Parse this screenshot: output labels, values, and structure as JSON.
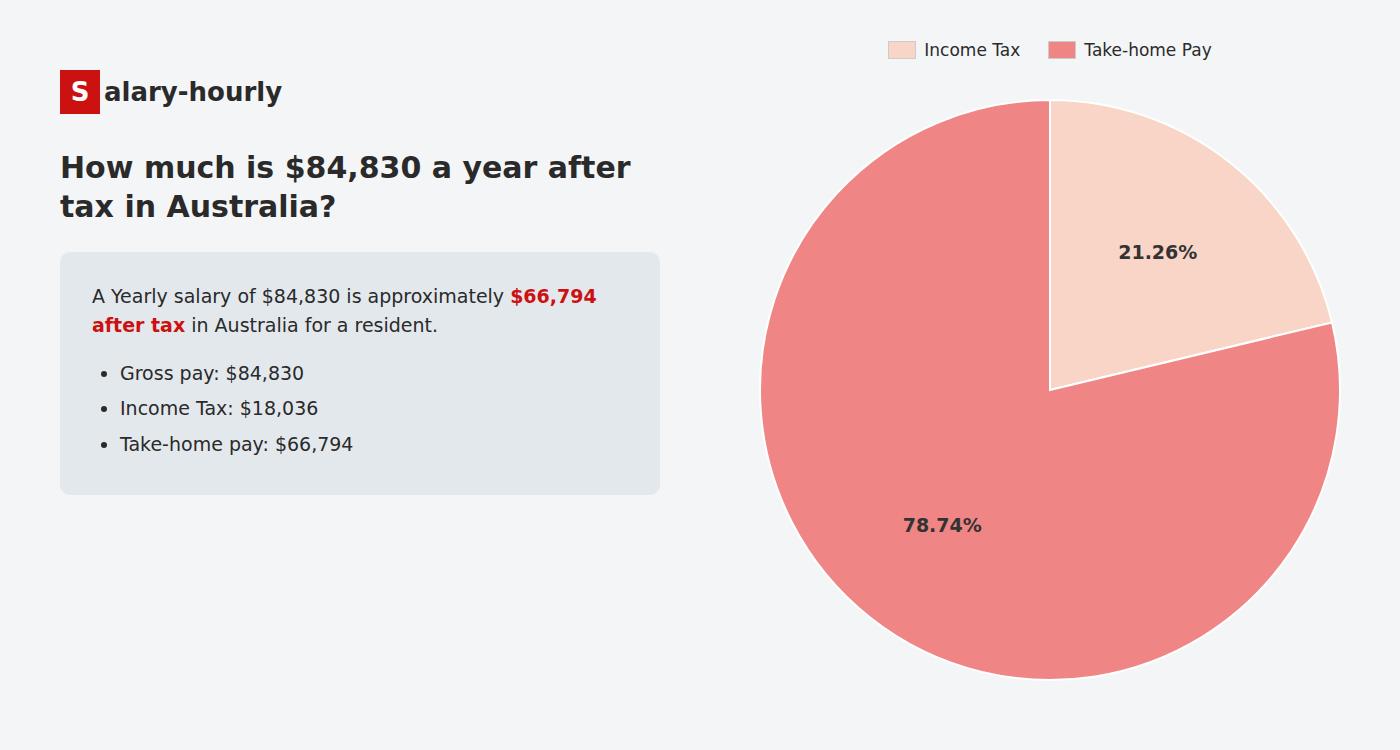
{
  "chart_data": {
    "type": "pie",
    "logo": {
      "texts": [
        "S",
        "alary-hourly"
      ],
      "color": "#cc1111"
    },
    "title": "How much is $84,830 a year after tax in Australia?",
    "description": [
      {
        "text": "A Yearly salary of $84,830 is approximately "
      },
      {
        "text": "$66,794 after tax",
        "color": "#cc1111"
      },
      {
        "text": " in Australia for a resident."
      }
    ],
    "bullets": [
      "Gross pay: $84,830",
      "Income Tax: $18,036",
      "Take-home pay: $66,794"
    ],
    "categories": [
      "Income Tax",
      "Take-home Pay"
    ],
    "values": [
      21.26,
      78.74
    ],
    "value_labels": [
      "21.26%",
      "78.74%"
    ],
    "colors": [
      "#f9d5c8",
      "#f08585"
    ],
    "data_labels": true,
    "legend": "top"
  }
}
